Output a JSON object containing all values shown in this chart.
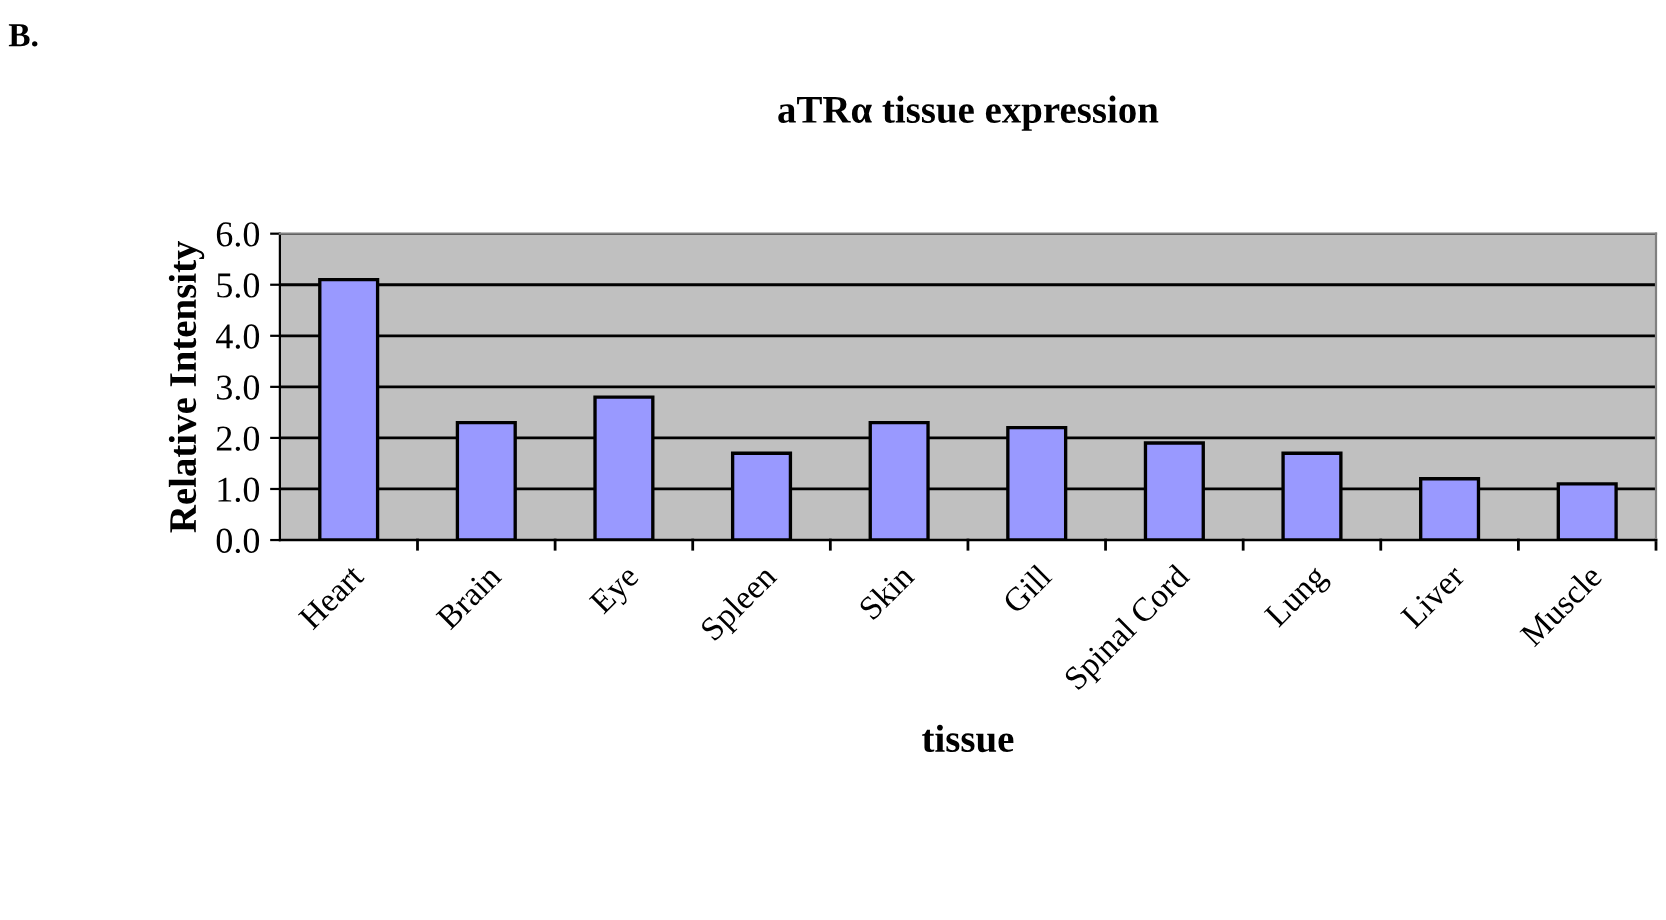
{
  "chart_data": {
    "type": "bar",
    "title": "aTRα tissue expression",
    "xlabel": "tissue",
    "ylabel": "Relative Intensity",
    "annotations": [
      "B."
    ],
    "categories": [
      "Heart",
      "Brain",
      "Eye",
      "Spleen",
      "Skin",
      "Gill",
      "Spinal Cord",
      "Lung",
      "Liver",
      "Muscle"
    ],
    "values": [
      5.1,
      2.3,
      2.8,
      1.7,
      2.3,
      2.2,
      1.9,
      1.7,
      1.2,
      1.1
    ],
    "color": "#9999ff",
    "ylim": [
      0,
      6
    ],
    "yticks": [
      {
        "value": 0,
        "label": "0.0"
      },
      {
        "value": 1,
        "label": "1.0"
      },
      {
        "value": 2,
        "label": "2.0"
      },
      {
        "value": 3,
        "label": "3.0"
      },
      {
        "value": 4,
        "label": "4.0"
      },
      {
        "value": 5,
        "label": "5.0"
      },
      {
        "value": 6,
        "label": "6.0"
      }
    ],
    "grid": "y",
    "legend": false
  }
}
